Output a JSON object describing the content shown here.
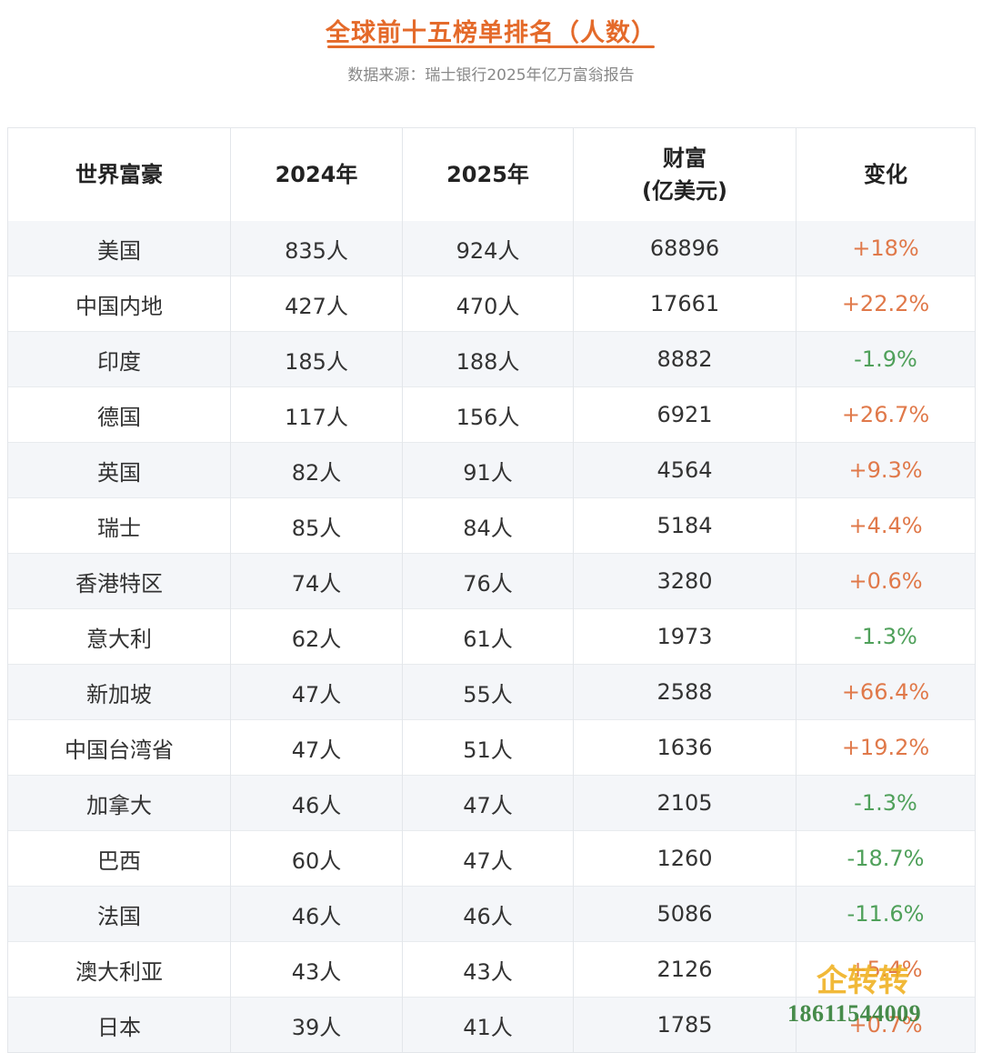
{
  "header": {
    "title": "全球前十五榜单排名（人数）",
    "subtitle": "数据来源：瑞士银行2025年亿万富翁报告"
  },
  "colors": {
    "accent": "#e46a2a",
    "positive": "#e0794a",
    "negative": "#4fa05a",
    "row_stripe": "#f4f6f9"
  },
  "table": {
    "headers": [
      "世界富豪",
      "2024年",
      "2025年",
      "财富\n(亿美元)",
      "变化"
    ],
    "rows": [
      [
        "美国",
        "835人",
        "924人",
        "68896",
        "+18%"
      ],
      [
        "中国内地",
        "427人",
        "470人",
        "17661",
        "+22.2%"
      ],
      [
        "印度",
        "185人",
        "188人",
        "8882",
        "-1.9%"
      ],
      [
        "德国",
        "117人",
        "156人",
        "6921",
        "+26.7%"
      ],
      [
        "英国",
        "82人",
        "91人",
        "4564",
        "+9.3%"
      ],
      [
        "瑞士",
        "85人",
        "84人",
        "5184",
        "+4.4%"
      ],
      [
        "香港特区",
        "74人",
        "76人",
        "3280",
        "+0.6%"
      ],
      [
        "意大利",
        "62人",
        "61人",
        "1973",
        "-1.3%"
      ],
      [
        "新加坡",
        "47人",
        "55人",
        "2588",
        "+66.4%"
      ],
      [
        "中国台湾省",
        "47人",
        "51人",
        "1636",
        "+19.2%"
      ],
      [
        "加拿大",
        "46人",
        "47人",
        "2105",
        "-1.3%"
      ],
      [
        "巴西",
        "60人",
        "47人",
        "1260",
        "-18.7%"
      ],
      [
        "法国",
        "46人",
        "46人",
        "5086",
        "-11.6%"
      ],
      [
        "澳大利亚",
        "43人",
        "43人",
        "2126",
        "+5.4%"
      ],
      [
        "日本",
        "39人",
        "41人",
        "1785",
        "+0.7%"
      ]
    ]
  },
  "watermark": {
    "logo_text": "企转转",
    "phone": "18611544009"
  }
}
